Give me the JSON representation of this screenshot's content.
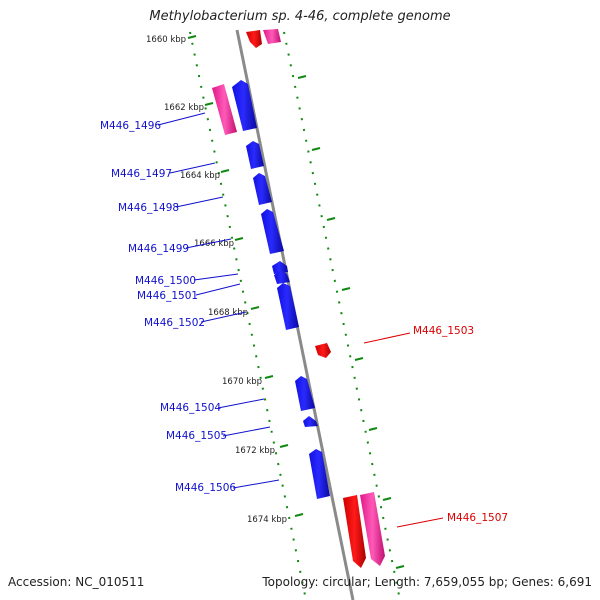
{
  "title": "Methylobacterium sp. 4-46, complete genome",
  "footer": {
    "accession": "Accession: NC_010511",
    "stats": "Topology: circular; Length: 7,659,055 bp; Genes: 6,691"
  },
  "colors": {
    "minus_strand": "#1010e0",
    "minus_strand_light": "#6a6aff",
    "plus_strand": "#ee0000",
    "plus_strand_pink": "#ff3fa8",
    "axis": "#888888",
    "ticks": "#118811",
    "label_minus": "#1010cc",
    "label_plus": "#dd0000"
  },
  "ticks": [
    "1660 kbp",
    "1662 kbp",
    "1664 kbp",
    "1666 kbp",
    "1668 kbp",
    "1670 kbp",
    "1672 kbp",
    "1674 kbp"
  ],
  "genes": [
    {
      "label": "M446_1496",
      "strand": "minus"
    },
    {
      "label": "M446_1497",
      "strand": "minus"
    },
    {
      "label": "M446_1498",
      "strand": "minus"
    },
    {
      "label": "M446_1499",
      "strand": "minus"
    },
    {
      "label": "M446_1500",
      "strand": "minus"
    },
    {
      "label": "M446_1501",
      "strand": "minus"
    },
    {
      "label": "M446_1502",
      "strand": "minus"
    },
    {
      "label": "M446_1503",
      "strand": "plus"
    },
    {
      "label": "M446_1504",
      "strand": "minus"
    },
    {
      "label": "M446_1505",
      "strand": "minus"
    },
    {
      "label": "M446_1506",
      "strand": "minus"
    },
    {
      "label": "M446_1507",
      "strand": "plus"
    }
  ]
}
